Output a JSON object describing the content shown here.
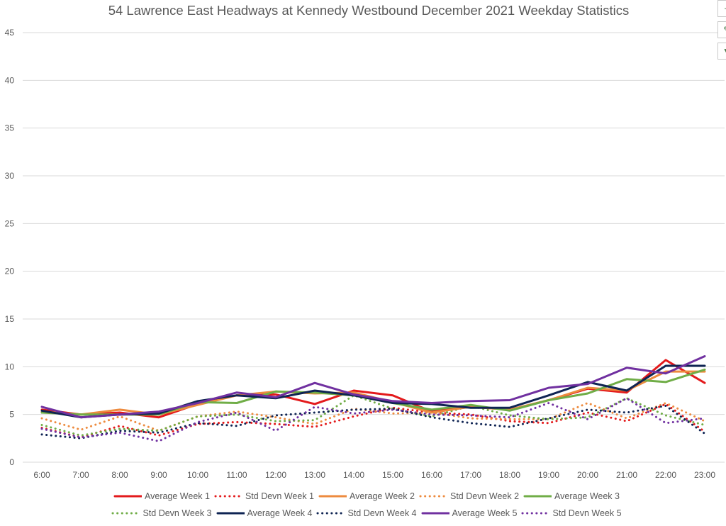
{
  "chart_data": {
    "type": "line",
    "title": "54 Lawrence East Headways at Kennedy Westbound December 2021 Weekday Statistics",
    "xlabel": "",
    "ylabel": "",
    "ylim": [
      0,
      45
    ],
    "yticks": [
      "0",
      "5",
      "10",
      "15",
      "20",
      "25",
      "30",
      "35",
      "40",
      "45"
    ],
    "grid": true,
    "legend_position": "bottom",
    "categories": [
      "6:00",
      "7:00",
      "8:00",
      "9:00",
      "10:00",
      "11:00",
      "12:00",
      "13:00",
      "14:00",
      "15:00",
      "16:00",
      "17:00",
      "18:00",
      "19:00",
      "20:00",
      "21:00",
      "22:00",
      "23:00"
    ],
    "series": [
      {
        "name": "Average Week 1",
        "color": "#e31a1c",
        "style": "solid",
        "values": [
          5.5,
          5.0,
          5.2,
          4.7,
          6.1,
          7.0,
          7.1,
          6.1,
          7.5,
          7.0,
          5.3,
          5.8,
          5.5,
          6.5,
          7.7,
          7.3,
          10.7,
          8.3
        ]
      },
      {
        "name": "Std Devn Week 1",
        "color": "#e31a1c",
        "style": "dotted",
        "values": [
          3.6,
          2.6,
          3.8,
          2.8,
          4.0,
          4.2,
          4.0,
          3.7,
          4.8,
          5.7,
          5.2,
          5.0,
          4.3,
          4.1,
          5.2,
          4.3,
          6.1,
          3.2
        ]
      },
      {
        "name": "Average Week 2",
        "color": "#ed8b3f",
        "style": "solid",
        "values": [
          5.3,
          5.0,
          5.5,
          5.0,
          6.0,
          7.0,
          7.4,
          7.2,
          7.3,
          6.3,
          5.2,
          5.8,
          5.5,
          6.5,
          7.8,
          7.5,
          9.5,
          9.5
        ]
      },
      {
        "name": "Std Devn Week 2",
        "color": "#ed8b3f",
        "style": "dotted",
        "values": [
          4.6,
          3.4,
          4.8,
          3.3,
          4.8,
          5.3,
          4.7,
          4.0,
          5.6,
          5.1,
          5.2,
          4.6,
          4.5,
          4.5,
          6.2,
          4.6,
          6.2,
          4.3
        ]
      },
      {
        "name": "Average Week 3",
        "color": "#70ad47",
        "style": "solid",
        "values": [
          5.2,
          5.0,
          5.0,
          5.0,
          6.3,
          6.2,
          7.4,
          7.3,
          7.0,
          6.2,
          5.5,
          6.0,
          5.4,
          6.5,
          7.2,
          8.7,
          8.4,
          9.7
        ]
      },
      {
        "name": "Std Devn Week 3",
        "color": "#70ad47",
        "style": "dotted",
        "values": [
          3.9,
          2.8,
          3.5,
          3.3,
          4.8,
          5.0,
          4.3,
          4.4,
          7.0,
          5.6,
          4.8,
          5.9,
          4.9,
          4.5,
          4.7,
          6.7,
          4.9,
          3.9
        ]
      },
      {
        "name": "Average Week 4",
        "color": "#0f2453",
        "style": "solid",
        "values": [
          5.4,
          4.7,
          5.0,
          5.1,
          6.4,
          7.0,
          6.7,
          7.5,
          7.0,
          6.2,
          6.1,
          5.7,
          5.7,
          7.0,
          8.4,
          7.5,
          10.1,
          10.1
        ]
      },
      {
        "name": "Std Devn Week 4",
        "color": "#0f2453",
        "style": "dotted",
        "values": [
          2.9,
          2.5,
          3.3,
          3.1,
          4.1,
          3.8,
          4.9,
          5.2,
          5.5,
          5.6,
          4.7,
          4.1,
          3.7,
          4.6,
          5.5,
          5.2,
          5.9,
          3.0
        ]
      },
      {
        "name": "Average Week 5",
        "color": "#7030a0",
        "style": "solid",
        "values": [
          5.8,
          4.7,
          5.0,
          5.3,
          6.2,
          7.3,
          6.8,
          8.3,
          7.1,
          6.4,
          6.2,
          6.4,
          6.5,
          7.8,
          8.2,
          9.9,
          9.3,
          11.1
        ]
      },
      {
        "name": "Std Devn Week 5",
        "color": "#7030a0",
        "style": "dotted",
        "values": [
          3.5,
          2.6,
          3.1,
          2.2,
          4.2,
          5.2,
          3.3,
          5.8,
          5.1,
          5.5,
          5.0,
          4.9,
          4.7,
          6.2,
          4.5,
          6.7,
          4.1,
          4.6
        ]
      }
    ]
  },
  "side_buttons": [
    {
      "name": "chart-elements-button",
      "glyph": "+"
    },
    {
      "name": "chart-styles-button",
      "glyph": "✎"
    },
    {
      "name": "chart-filters-button",
      "glyph": "▼"
    }
  ]
}
